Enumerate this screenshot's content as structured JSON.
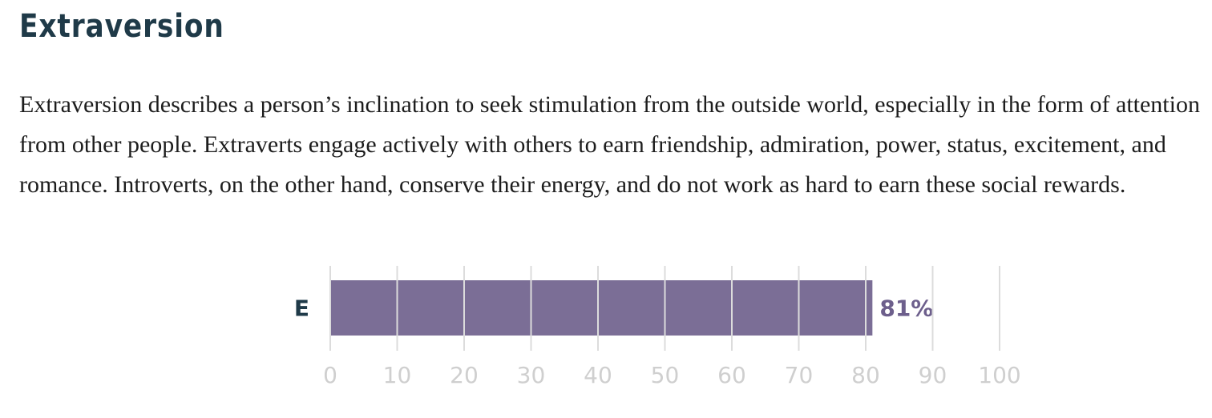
{
  "section": {
    "title": "Extraversion",
    "description": "Extraversion describes a person’s inclination to seek stimulation from the outside world, especially in the form of attention from other people. Extraverts engage actively with others to earn friendship, admiration, power, status, excitement, and romance. Introverts, on the other hand, conserve their energy, and do not work as hard to earn these social rewards."
  },
  "colors": {
    "bar": "#7b6e96",
    "value_label": "#6d5f8c",
    "heading": "#1f3a48"
  },
  "chart_data": {
    "type": "bar",
    "orientation": "horizontal",
    "categories": [
      "E"
    ],
    "values": [
      81
    ],
    "value_labels": [
      "81%"
    ],
    "xlim": [
      0,
      100
    ],
    "xticks": [
      "0",
      "10",
      "20",
      "30",
      "40",
      "50",
      "60",
      "70",
      "80",
      "90",
      "100"
    ],
    "grid": true
  }
}
